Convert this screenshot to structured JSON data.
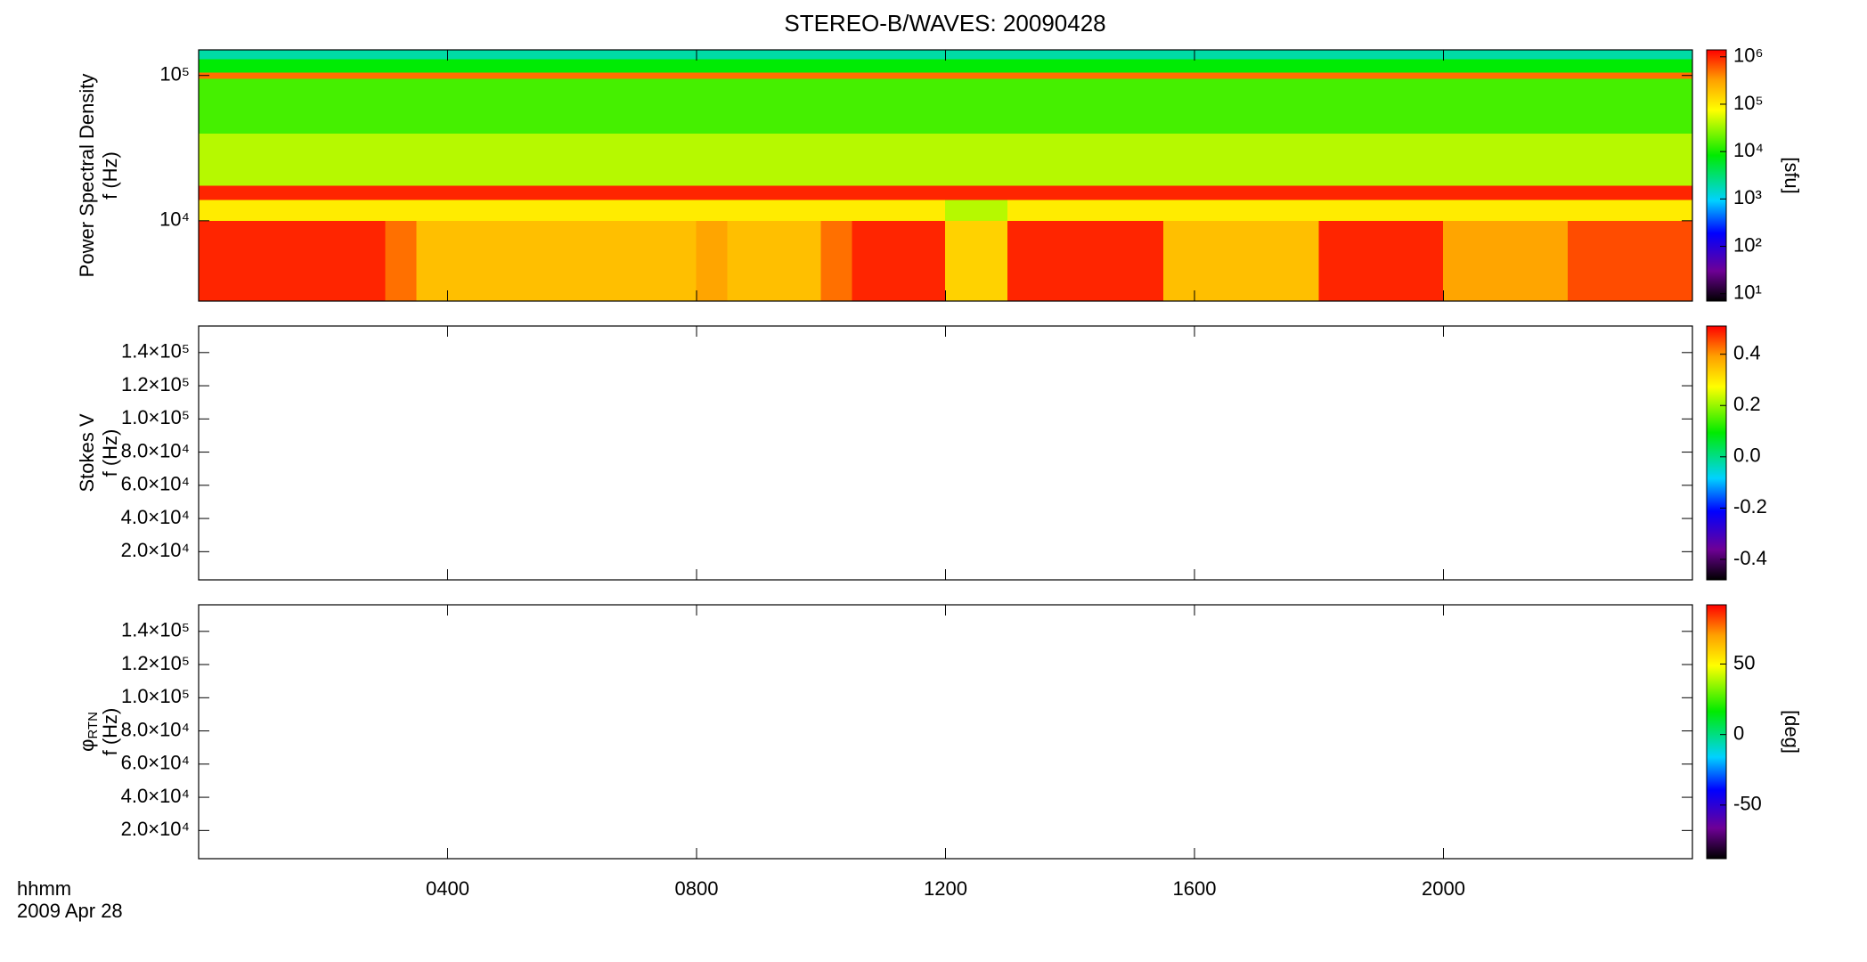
{
  "chart_data": [
    {
      "type": "heatmap",
      "title": "STEREO-B/WAVES: 20090428",
      "ylabel": "Power Spectral Density",
      "ylabel2": "f (Hz)",
      "ylog": true,
      "ylim": [
        2800,
        150000
      ],
      "yticks": [
        {
          "value": 10000,
          "label": "10⁴"
        },
        {
          "value": 100000,
          "label": "10⁵"
        }
      ],
      "xlim": [
        0,
        24
      ],
      "xticks": [
        4,
        8,
        12,
        16,
        20
      ],
      "x": [
        0,
        0.5,
        1,
        1.5,
        2,
        2.5,
        3,
        3.5,
        4,
        4.5,
        5,
        5.5,
        6,
        6.5,
        7,
        7.5,
        8,
        8.5,
        9,
        9.5,
        10,
        10.5,
        11,
        11.5,
        12,
        12.5,
        13,
        13.5,
        14,
        14.5,
        15,
        15.5,
        16,
        16.5,
        17,
        17.5,
        18,
        18.5,
        19,
        19.5,
        20,
        20.5,
        21,
        21.5,
        22,
        22.5,
        23,
        23.5,
        24
      ],
      "y": [
        2800,
        10000,
        14000,
        17500,
        40000,
        95000,
        105000,
        130000,
        150000
      ],
      "z": [
        [
          1000000,
          1000000,
          1000000,
          1000000,
          1000000,
          1000000,
          500000,
          200000,
          200000,
          200000,
          200000,
          200000,
          200000,
          200000,
          200000,
          200000,
          300000,
          200000,
          200000,
          200000,
          500000,
          1000000,
          1000000,
          1000000,
          150000,
          150000,
          1000000,
          1000000,
          1000000,
          1000000,
          1000000,
          200000,
          200000,
          200000,
          200000,
          200000,
          1000000,
          1000000,
          1000000,
          1000000,
          300000,
          300000,
          300000,
          300000,
          700000,
          700000,
          700000,
          700000
        ],
        [
          100000,
          100000,
          100000,
          100000,
          100000,
          100000,
          100000,
          100000,
          100000,
          100000,
          100000,
          100000,
          100000,
          100000,
          100000,
          100000,
          100000,
          100000,
          100000,
          100000,
          100000,
          100000,
          100000,
          100000,
          40000,
          40000,
          100000,
          100000,
          100000,
          100000,
          100000,
          100000,
          100000,
          100000,
          100000,
          100000,
          100000,
          100000,
          100000,
          100000,
          100000,
          100000,
          100000,
          100000,
          100000,
          100000,
          100000,
          100000
        ],
        [
          1000000,
          1000000,
          1000000,
          1000000,
          1000000,
          1000000,
          1000000,
          1000000,
          1000000,
          1000000,
          1000000,
          1000000,
          1000000,
          1000000,
          1000000,
          1000000,
          1000000,
          1000000,
          1000000,
          1000000,
          1000000,
          1000000,
          1000000,
          1000000,
          1000000,
          1000000,
          1000000,
          1000000,
          1000000,
          1000000,
          1000000,
          1000000,
          1000000,
          1000000,
          1000000,
          1000000,
          1000000,
          1000000,
          1000000,
          1000000,
          1000000,
          1000000,
          1000000,
          1000000,
          1000000,
          1000000,
          1000000,
          1000000
        ],
        [
          40000,
          40000,
          40000,
          40000,
          40000,
          40000,
          40000,
          40000,
          40000,
          40000,
          40000,
          40000,
          40000,
          40000,
          40000,
          40000,
          40000,
          40000,
          40000,
          40000,
          40000,
          40000,
          40000,
          40000,
          40000,
          40000,
          40000,
          40000,
          40000,
          40000,
          40000,
          40000,
          40000,
          40000,
          40000,
          40000,
          40000,
          40000,
          40000,
          40000,
          40000,
          40000,
          40000,
          40000,
          40000,
          40000,
          40000,
          40000
        ],
        [
          15000,
          15000,
          15000,
          15000,
          15000,
          15000,
          15000,
          15000,
          15000,
          15000,
          15000,
          15000,
          15000,
          15000,
          15000,
          15000,
          15000,
          15000,
          15000,
          15000,
          15000,
          15000,
          15000,
          15000,
          15000,
          15000,
          15000,
          15000,
          15000,
          15000,
          15000,
          15000,
          15000,
          15000,
          15000,
          15000,
          15000,
          15000,
          15000,
          15000,
          15000,
          15000,
          15000,
          15000,
          15000,
          15000,
          15000,
          15000
        ],
        [
          500000,
          500000,
          500000,
          500000,
          500000,
          500000,
          500000,
          500000,
          500000,
          500000,
          500000,
          500000,
          500000,
          500000,
          500000,
          500000,
          500000,
          500000,
          500000,
          500000,
          500000,
          500000,
          500000,
          500000,
          500000,
          500000,
          500000,
          500000,
          500000,
          500000,
          500000,
          500000,
          500000,
          500000,
          500000,
          500000,
          500000,
          500000,
          500000,
          500000,
          500000,
          500000,
          500000,
          500000,
          500000,
          500000,
          500000,
          500000
        ],
        [
          8000,
          8000,
          8000,
          8000,
          8000,
          8000,
          8000,
          8000,
          8000,
          8000,
          8000,
          8000,
          8000,
          8000,
          8000,
          8000,
          8000,
          8000,
          8000,
          8000,
          8000,
          8000,
          8000,
          8000,
          8000,
          8000,
          8000,
          8000,
          8000,
          8000,
          8000,
          8000,
          8000,
          8000,
          8000,
          8000,
          8000,
          8000,
          8000,
          8000,
          8000,
          8000,
          8000,
          8000,
          8000,
          8000,
          8000,
          8000
        ],
        [
          2000,
          2000,
          2000,
          2000,
          2000,
          2000,
          2000,
          2000,
          2000,
          2000,
          2000,
          2000,
          2000,
          2000,
          2000,
          2000,
          2000,
          2000,
          2000,
          2000,
          2000,
          2000,
          2000,
          2000,
          2000,
          2000,
          2000,
          2000,
          2000,
          2000,
          2000,
          2000,
          2000,
          2000,
          2000,
          2000,
          2000,
          2000,
          2000,
          2000,
          2000,
          2000,
          2000,
          2000,
          2000,
          2000,
          2000,
          2000
        ]
      ],
      "colormap": "rainbow",
      "clog": true,
      "clim": [
        7,
        1400000
      ],
      "cticks": [
        {
          "value": 10,
          "label": "10¹"
        },
        {
          "value": 100,
          "label": "10²"
        },
        {
          "value": 1000,
          "label": "10³"
        },
        {
          "value": 10000,
          "label": "10⁴"
        },
        {
          "value": 100000,
          "label": "10⁵"
        },
        {
          "value": 1000000,
          "label": "10⁶"
        }
      ],
      "clabel": "[sfu]"
    },
    {
      "type": "heatmap",
      "ylabel": "Stokes V",
      "ylabel2": "f (Hz)",
      "ylim": [
        3000,
        156000
      ],
      "yticks": [
        {
          "value": 20000,
          "label": "2.0×10⁴"
        },
        {
          "value": 40000,
          "label": "4.0×10⁴"
        },
        {
          "value": 60000,
          "label": "6.0×10⁴"
        },
        {
          "value": 80000,
          "label": "8.0×10⁴"
        },
        {
          "value": 100000,
          "label": "1.0×10⁵"
        },
        {
          "value": 120000,
          "label": "1.2×10⁵"
        },
        {
          "value": 140000,
          "label": "1.4×10⁵"
        }
      ],
      "xlim": [
        0,
        24
      ],
      "xticks": [
        4,
        8,
        12,
        16,
        20
      ],
      "colormap": "rainbow",
      "clim": [
        -0.48,
        0.51
      ],
      "cticks": [
        -0.4,
        -0.2,
        {
          "value": 0,
          "label": "0.0"
        },
        0.2,
        0.4
      ]
    },
    {
      "type": "heatmap",
      "ylabel": "φ",
      "ylabel_sub": "RTN",
      "ylabel2": "f (Hz)",
      "ylim": [
        3000,
        156000
      ],
      "yticks": [
        {
          "value": 20000,
          "label": "2.0×10⁴"
        },
        {
          "value": 40000,
          "label": "4.0×10⁴"
        },
        {
          "value": 60000,
          "label": "6.0×10⁴"
        },
        {
          "value": 80000,
          "label": "8.0×10⁴"
        },
        {
          "value": 100000,
          "label": "1.0×10⁵"
        },
        {
          "value": 120000,
          "label": "1.2×10⁵"
        },
        {
          "value": 140000,
          "label": "1.4×10⁵"
        }
      ],
      "xlim": [
        0,
        24
      ],
      "xticks": [
        {
          "value": 4,
          "label": "0400"
        },
        {
          "value": 8,
          "label": "0800"
        },
        {
          "value": 12,
          "label": "1200"
        },
        {
          "value": 16,
          "label": "1600"
        },
        {
          "value": 20,
          "label": "2000"
        }
      ],
      "xlabel": "hhmm",
      "date": "2009 Apr 28",
      "colormap": "rainbow",
      "clim": [
        -88,
        92
      ],
      "cticks": [
        -50,
        0,
        50
      ],
      "clabel": "[deg]"
    }
  ]
}
